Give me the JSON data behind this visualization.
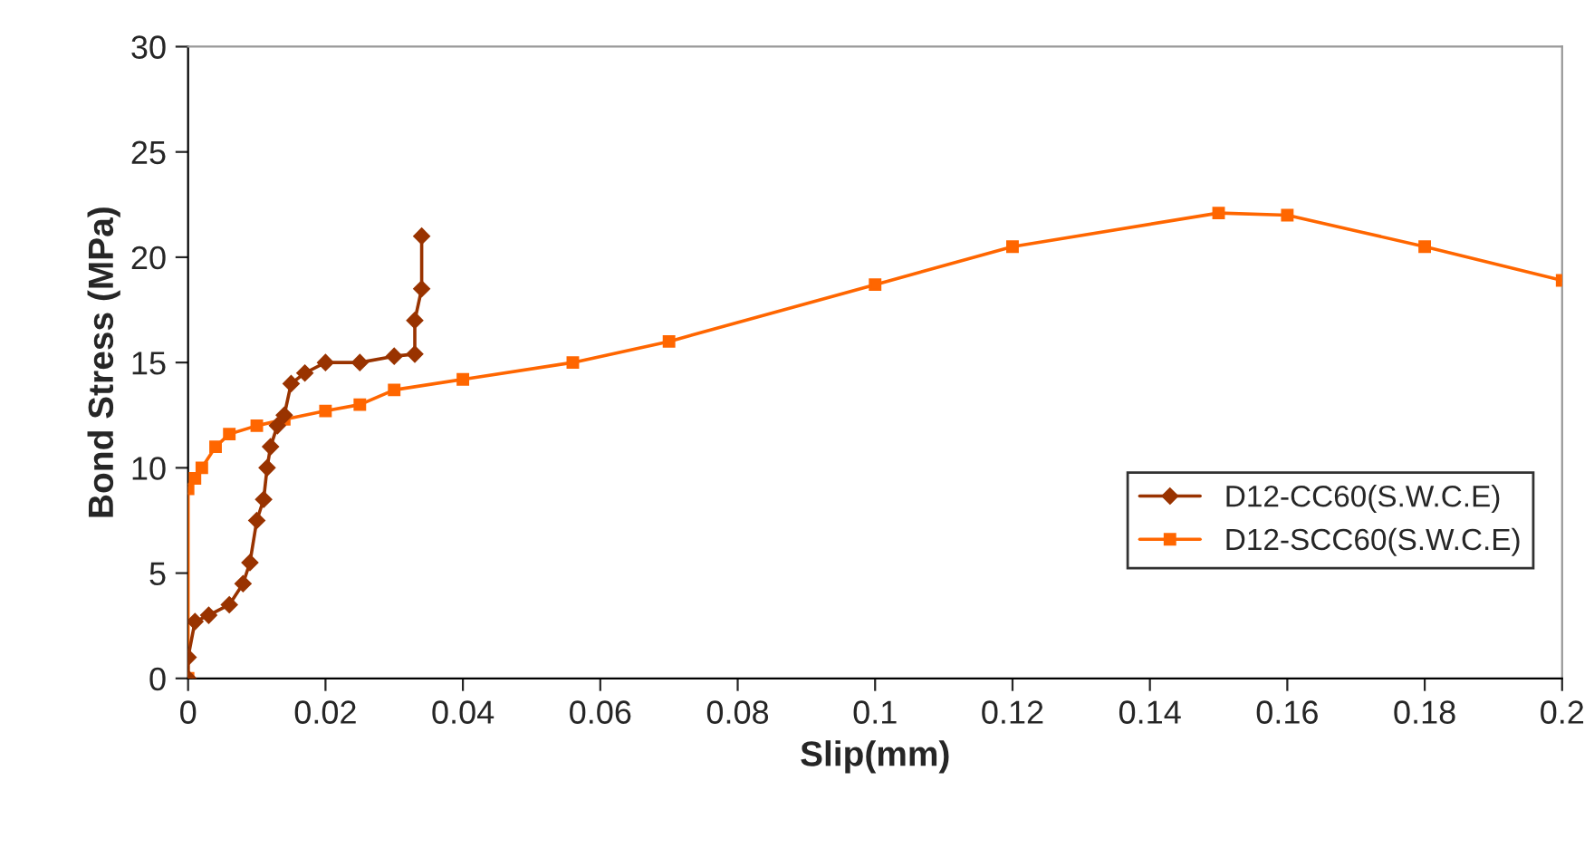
{
  "chart_data": {
    "type": "line",
    "xlabel": "Slip(mm)",
    "ylabel": "Bond Stress (MPa)",
    "xlim": [
      0,
      0.2
    ],
    "xticks": [
      {
        "value": 0,
        "label": "0"
      },
      0.02,
      0.04,
      0.06,
      0.08,
      0.1,
      0.12,
      0.14,
      0.16,
      0.18,
      0.2
    ],
    "ylim": [
      0,
      30
    ],
    "yticks": [
      0,
      5,
      10,
      15,
      20,
      25,
      30
    ],
    "grid": false,
    "legend": "right",
    "series": [
      {
        "name": "D12-CC60(S.W.C.E)",
        "color": "#993300",
        "marker": "diamond",
        "x": [
          0,
          0,
          0.001,
          0.003,
          0.006,
          0.008,
          0.009,
          0.01,
          0.011,
          0.0115,
          0.012,
          0.013,
          0.014,
          0.015,
          0.017,
          0.02,
          0.025,
          0.03,
          0.033,
          0.033,
          0.034,
          0.034
        ],
        "values": [
          0,
          1,
          2.7,
          3,
          3.5,
          4.5,
          5.5,
          7.5,
          8.5,
          10,
          11,
          12,
          12.5,
          14,
          14.5,
          15,
          15,
          15.3,
          15.4,
          17,
          18.5,
          21
        ]
      },
      {
        "name": "D12-SCC60(S.W.C.E)",
        "color": "#ff6600",
        "marker": "square",
        "x": [
          0,
          0,
          0.001,
          0.002,
          0.004,
          0.006,
          0.01,
          0.014,
          0.02,
          0.025,
          0.03,
          0.04,
          0.056,
          0.07,
          0.1,
          0.12,
          0.15,
          0.16,
          0.18,
          0.2
        ],
        "values": [
          0,
          9,
          9.5,
          10,
          11,
          11.6,
          12,
          12.3,
          12.7,
          13,
          13.7,
          14.2,
          15,
          16,
          18.7,
          20.5,
          22.1,
          22,
          20.5,
          18.9
        ]
      }
    ]
  }
}
